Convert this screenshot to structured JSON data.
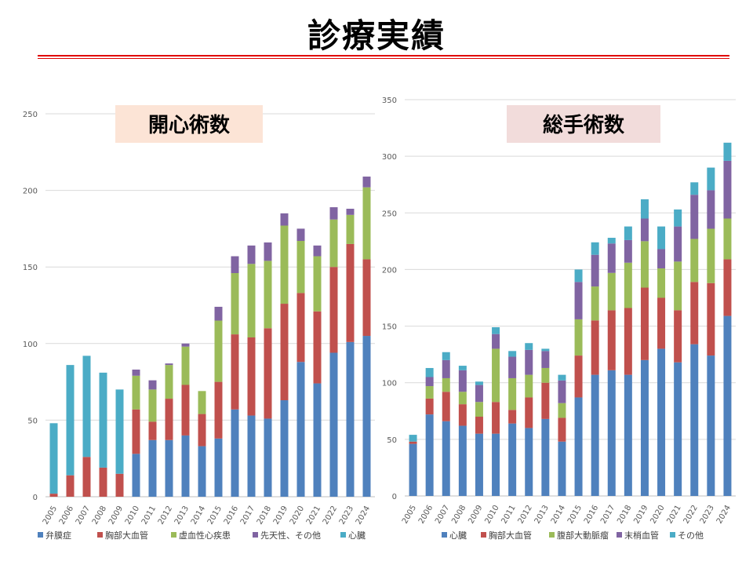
{
  "page": {
    "title": "診療実績"
  },
  "chart_data": [
    {
      "type": "bar",
      "stacked": true,
      "title": "開心術数",
      "title_bg": "#fce4d6",
      "categories": [
        "2005",
        "2006",
        "2007",
        "2008",
        "2009",
        "2010",
        "2011",
        "2012",
        "2013",
        "2014",
        "2015",
        "2016",
        "2017",
        "2018",
        "2019",
        "2020",
        "2021",
        "2022",
        "2023",
        "2024"
      ],
      "ylim": [
        0,
        250
      ],
      "yticks": [
        0,
        50,
        100,
        150,
        200,
        250
      ],
      "grid": true,
      "legend_position": "bottom",
      "series": [
        {
          "name": "弁膜症",
          "color": "#4f81bd",
          "values": [
            0,
            0,
            0,
            0,
            0,
            28,
            37,
            37,
            40,
            33,
            38,
            57,
            53,
            51,
            63,
            88,
            74,
            94,
            101,
            105
          ]
        },
        {
          "name": "胸部大血管",
          "color": "#c0504d",
          "values": [
            2,
            14,
            26,
            19,
            15,
            29,
            12,
            27,
            33,
            21,
            37,
            49,
            51,
            59,
            63,
            45,
            47,
            56,
            64,
            50
          ]
        },
        {
          "name": "虚血性心疾患",
          "color": "#9bbb59",
          "values": [
            0,
            0,
            0,
            0,
            0,
            22,
            21,
            22,
            25,
            15,
            40,
            40,
            48,
            44,
            51,
            34,
            36,
            31,
            19,
            47
          ]
        },
        {
          "name": "先天性、その他",
          "color": "#8064a2",
          "values": [
            0,
            0,
            0,
            0,
            0,
            4,
            6,
            1,
            2,
            0,
            9,
            11,
            12,
            12,
            8,
            8,
            7,
            8,
            4,
            7
          ]
        },
        {
          "name": "心臓",
          "color": "#4bacc6",
          "values": [
            46,
            72,
            66,
            62,
            55,
            0,
            0,
            0,
            0,
            0,
            0,
            0,
            0,
            0,
            0,
            0,
            0,
            0,
            0,
            0
          ]
        }
      ]
    },
    {
      "type": "bar",
      "stacked": true,
      "title": "総手術数",
      "title_bg": "#f2dcdb",
      "categories": [
        "2005",
        "2006",
        "2007",
        "2008",
        "2009",
        "2010",
        "2011",
        "2012",
        "2013",
        "2014",
        "2015",
        "2016",
        "2017",
        "2018",
        "2019",
        "2020",
        "2021",
        "2022",
        "2023",
        "2024"
      ],
      "ylim": [
        0,
        350
      ],
      "yticks": [
        0,
        50,
        100,
        150,
        200,
        250,
        300,
        350
      ],
      "grid": true,
      "legend_position": "bottom",
      "series": [
        {
          "name": "心臓",
          "color": "#4f81bd",
          "values": [
            46,
            72,
            66,
            62,
            55,
            55,
            64,
            60,
            68,
            48,
            87,
            107,
            111,
            107,
            120,
            130,
            118,
            134,
            124,
            159
          ]
        },
        {
          "name": "胸部大血管",
          "color": "#c0504d",
          "values": [
            2,
            14,
            26,
            19,
            15,
            28,
            12,
            27,
            32,
            21,
            37,
            48,
            53,
            59,
            64,
            45,
            46,
            55,
            64,
            50
          ]
        },
        {
          "name": "腹部大動脈瘤",
          "color": "#9bbb59",
          "values": [
            0,
            11,
            12,
            11,
            13,
            47,
            28,
            20,
            13,
            13,
            32,
            30,
            33,
            40,
            41,
            26,
            43,
            38,
            48,
            36
          ]
        },
        {
          "name": "末梢血管",
          "color": "#8064a2",
          "values": [
            0,
            8,
            16,
            19,
            15,
            13,
            19,
            22,
            15,
            20,
            33,
            28,
            26,
            20,
            20,
            17,
            31,
            39,
            34,
            51
          ]
        },
        {
          "name": "その他",
          "color": "#4bacc6",
          "values": [
            6,
            8,
            7,
            4,
            3,
            6,
            5,
            6,
            2,
            5,
            11,
            11,
            5,
            12,
            17,
            20,
            15,
            11,
            20,
            16
          ]
        }
      ]
    }
  ]
}
